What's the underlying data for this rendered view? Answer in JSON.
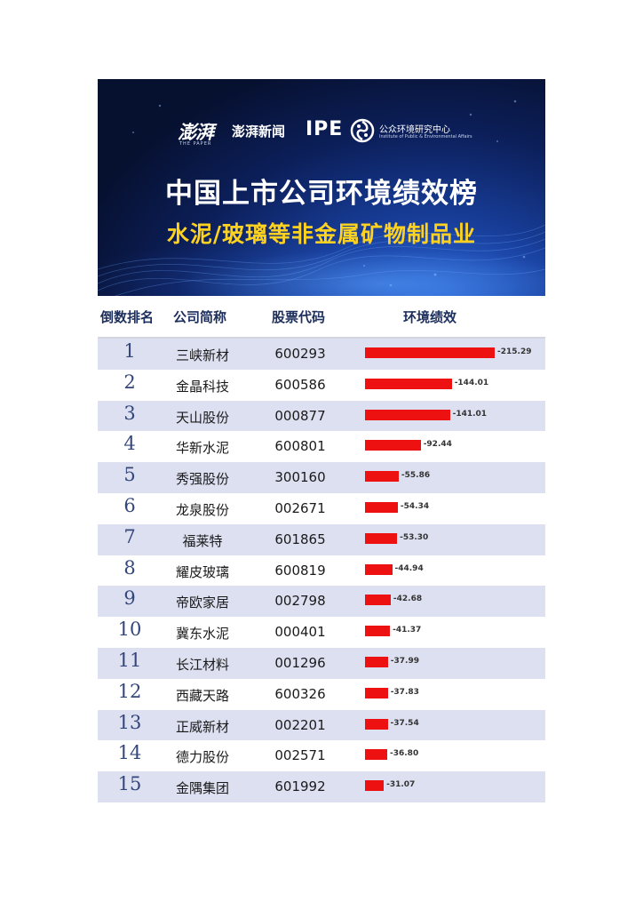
{
  "banner": {
    "paper_mark": "澎湃",
    "paper_en": "THE PAPER",
    "paper_name": "澎湃新闻",
    "ipe_logo": "IPE",
    "ipe_name": "公众环境研究中心",
    "ipe_en": "Institute of Public & Environmental Affairs",
    "title": "中国上市公司环境绩效榜",
    "subtitle": "水泥/玻璃等非金属矿物制品业"
  },
  "table": {
    "headers": {
      "rank": "倒数排名",
      "company": "公司简称",
      "code": "股票代码",
      "performance": "环境绩效"
    }
  },
  "chart_data": {
    "type": "bar",
    "orientation": "horizontal",
    "bar_color": "#ee1111",
    "categories": [
      "三峡新材",
      "金晶科技",
      "天山股份",
      "华新水泥",
      "秀强股份",
      "龙泉股份",
      "福莱特",
      "耀皮玻璃",
      "帝欧家居",
      "冀东水泥",
      "长江材料",
      "西藏天路",
      "正威新材",
      "德力股份",
      "金隅集团"
    ],
    "ranks": [
      "1",
      "2",
      "3",
      "4",
      "5",
      "6",
      "7",
      "8",
      "9",
      "10",
      "11",
      "12",
      "13",
      "14",
      "15"
    ],
    "codes": [
      "600293",
      "600586",
      "000877",
      "600801",
      "300160",
      "002671",
      "601865",
      "600819",
      "002798",
      "000401",
      "001296",
      "600326",
      "002201",
      "002571",
      "601992"
    ],
    "values": [
      -215.29,
      -144.01,
      -141.01,
      -92.44,
      -55.86,
      -54.34,
      -53.3,
      -44.94,
      -42.68,
      -41.37,
      -37.99,
      -37.83,
      -37.54,
      -36.8,
      -31.07
    ],
    "labels": [
      "-215.29",
      "-144.01",
      "-141.01",
      "-92.44",
      "-55.86",
      "-54.34",
      "-53.30",
      "-44.94",
      "-42.68",
      "-41.37",
      "-37.99",
      "-37.83",
      "-37.54",
      "-36.80",
      "-31.07"
    ]
  }
}
